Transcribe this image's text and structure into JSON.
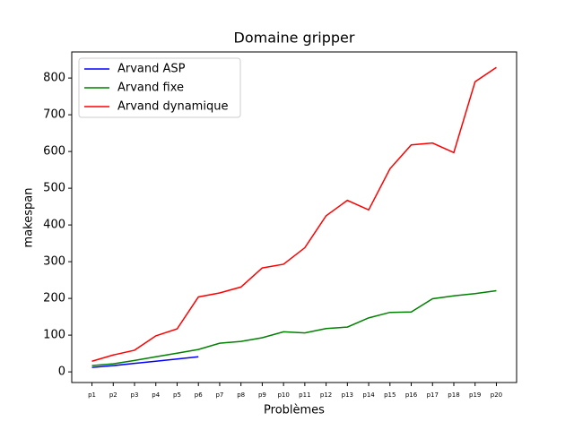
{
  "chart_data": {
    "type": "line",
    "title": "Domaine gripper",
    "x_label": "Problèmes",
    "y_label": "makespan",
    "categories": [
      "p1",
      "p2",
      "p3",
      "p4",
      "p5",
      "p6",
      "p7",
      "p8",
      "p9",
      "p10",
      "p11",
      "p12",
      "p13",
      "p14",
      "p15",
      "p16",
      "p17",
      "p18",
      "p19",
      "p20"
    ],
    "series": [
      {
        "name": "Arvand ASP",
        "color": "#0000ff",
        "values": [
          12,
          17,
          23,
          29,
          35,
          41,
          null,
          null,
          null,
          null,
          null,
          null,
          null,
          null,
          null,
          null,
          null,
          null,
          null,
          null
        ]
      },
      {
        "name": "Arvand fixe",
        "color": "#008000",
        "values": [
          17,
          22,
          31,
          41,
          51,
          61,
          78,
          83,
          93,
          109,
          106,
          118,
          122,
          147,
          162,
          163,
          199,
          207,
          213,
          221
        ]
      },
      {
        "name": "Arvand dynamique",
        "color": "#ff0000",
        "values": [
          29,
          46,
          59,
          98,
          117,
          204,
          215,
          231,
          283,
          293,
          338,
          425,
          467,
          441,
          553,
          618,
          623,
          597,
          790,
          829
        ]
      }
    ],
    "ylim": [
      -29,
      871
    ],
    "yticks": [
      0,
      100,
      200,
      300,
      400,
      500,
      600,
      700,
      800
    ],
    "legend": "upper left"
  }
}
